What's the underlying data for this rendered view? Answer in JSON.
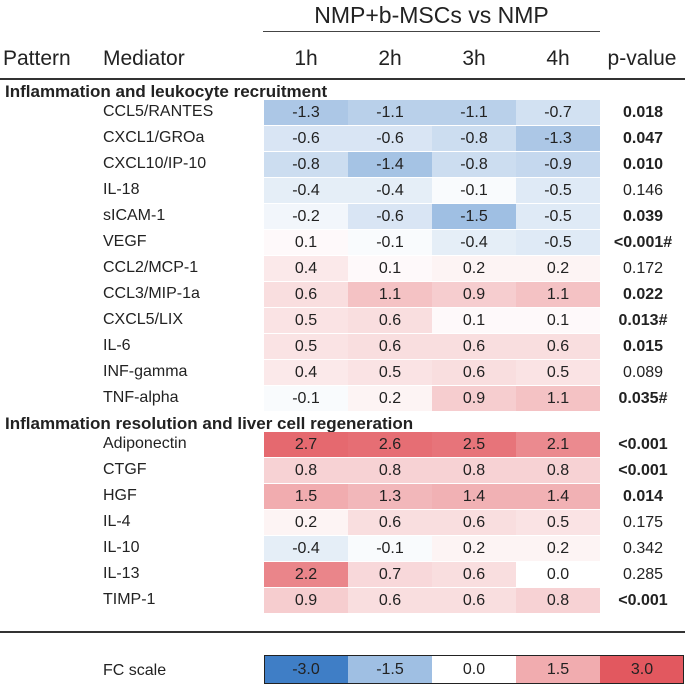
{
  "chart_data": {
    "type": "heatmap",
    "group_title": "NMP+b-MSCs vs NMP",
    "columns": {
      "pattern": "Pattern",
      "mediator": "Mediator",
      "times": [
        "1h",
        "2h",
        "3h",
        "4h"
      ],
      "pvalue": "p-value"
    },
    "sections": [
      {
        "name": "Inflammation and leukocyte recruitment",
        "rows": [
          {
            "mediator": "CCL5/RANTES",
            "values": [
              -1.3,
              -1.1,
              -1.1,
              -0.7
            ],
            "labels": [
              "-1.3",
              "-1.1",
              "-1.1",
              "-0.7"
            ],
            "pvalue": "0.018",
            "significant": true
          },
          {
            "mediator": "CXCL1/GROa",
            "values": [
              -0.6,
              -0.6,
              -0.8,
              -1.3
            ],
            "labels": [
              "-0.6",
              "-0.6",
              "-0.8",
              "-1.3"
            ],
            "pvalue": "0.047",
            "significant": true
          },
          {
            "mediator": "CXCL10/IP-10",
            "values": [
              -0.8,
              -1.4,
              -0.8,
              -0.9
            ],
            "labels": [
              "-0.8",
              "-1.4",
              "-0.8",
              "-0.9"
            ],
            "pvalue": "0.010",
            "significant": true
          },
          {
            "mediator": "IL-18",
            "values": [
              -0.4,
              -0.4,
              -0.1,
              -0.5
            ],
            "labels": [
              "-0.4",
              "-0.4",
              "-0.1",
              "-0.5"
            ],
            "pvalue": "0.146",
            "significant": false
          },
          {
            "mediator": "sICAM-1",
            "values": [
              -0.2,
              -0.6,
              -1.5,
              -0.5
            ],
            "labels": [
              "-0.2",
              "-0.6",
              "-1.5",
              "-0.5"
            ],
            "pvalue": "0.039",
            "significant": true
          },
          {
            "mediator": "VEGF",
            "values": [
              0.1,
              -0.1,
              -0.4,
              -0.5
            ],
            "labels": [
              "0.1",
              "-0.1",
              "-0.4",
              "-0.5"
            ],
            "pvalue": "<0.001#",
            "significant": true
          },
          {
            "mediator": "CCL2/MCP-1",
            "values": [
              0.4,
              0.1,
              0.2,
              0.2
            ],
            "labels": [
              "0.4",
              "0.1",
              "0.2",
              "0.2"
            ],
            "pvalue": "0.172",
            "significant": false
          },
          {
            "mediator": "CCL3/MIP-1a",
            "values": [
              0.6,
              1.1,
              0.9,
              1.1
            ],
            "labels": [
              "0.6",
              "1.1",
              "0.9",
              "1.1"
            ],
            "pvalue": "0.022",
            "significant": true
          },
          {
            "mediator": "CXCL5/LIX",
            "values": [
              0.5,
              0.6,
              0.1,
              0.1
            ],
            "labels": [
              "0.5",
              "0.6",
              "0.1",
              "0.1"
            ],
            "pvalue": "0.013#",
            "significant": true
          },
          {
            "mediator": "IL-6",
            "values": [
              0.5,
              0.6,
              0.6,
              0.6
            ],
            "labels": [
              "0.5",
              "0.6",
              "0.6",
              "0.6"
            ],
            "pvalue": "0.015",
            "significant": true
          },
          {
            "mediator": "INF-gamma",
            "values": [
              0.4,
              0.5,
              0.6,
              0.5
            ],
            "labels": [
              "0.4",
              "0.5",
              "0.6",
              "0.5"
            ],
            "pvalue": "0.089",
            "significant": false
          },
          {
            "mediator": "TNF-alpha",
            "values": [
              -0.1,
              0.2,
              0.9,
              1.1
            ],
            "labels": [
              "-0.1",
              "0.2",
              "0.9",
              "1.1"
            ],
            "pvalue": "0.035#",
            "significant": true
          }
        ]
      },
      {
        "name": "Inflammation resolution and liver cell regeneration",
        "rows": [
          {
            "mediator": "Adiponectin",
            "values": [
              2.7,
              2.6,
              2.5,
              2.1
            ],
            "labels": [
              "2.7",
              "2.6",
              "2.5",
              "2.1"
            ],
            "pvalue": "<0.001",
            "significant": true
          },
          {
            "mediator": "CTGF",
            "values": [
              0.8,
              0.8,
              0.8,
              0.8
            ],
            "labels": [
              "0.8",
              "0.8",
              "0.8",
              "0.8"
            ],
            "pvalue": "<0.001",
            "significant": true
          },
          {
            "mediator": "HGF",
            "values": [
              1.5,
              1.3,
              1.4,
              1.4
            ],
            "labels": [
              "1.5",
              "1.3",
              "1.4",
              "1.4"
            ],
            "pvalue": "0.014",
            "significant": true
          },
          {
            "mediator": "IL-4",
            "values": [
              0.2,
              0.6,
              0.6,
              0.5
            ],
            "labels": [
              "0.2",
              "0.6",
              "0.6",
              "0.5"
            ],
            "pvalue": "0.175",
            "significant": false
          },
          {
            "mediator": "IL-10",
            "values": [
              -0.4,
              -0.1,
              0.2,
              0.2
            ],
            "labels": [
              "-0.4",
              "-0.1",
              "0.2",
              "0.2"
            ],
            "pvalue": "0.342",
            "significant": false
          },
          {
            "mediator": "IL-13",
            "values": [
              2.2,
              0.7,
              0.6,
              0.0
            ],
            "labels": [
              "2.2",
              "0.7",
              "0.6",
              "0.0"
            ],
            "pvalue": "0.285",
            "significant": false
          },
          {
            "mediator": "TIMP-1",
            "values": [
              0.9,
              0.6,
              0.6,
              0.8
            ],
            "labels": [
              "0.9",
              "0.6",
              "0.6",
              "0.8"
            ],
            "pvalue": "<0.001",
            "significant": true
          }
        ]
      }
    ],
    "scale": {
      "label": "FC scale",
      "stops": [
        -3.0,
        -1.5,
        0.0,
        1.5,
        3.0
      ],
      "stop_labels": [
        "-3.0",
        "-1.5",
        "0.0",
        "1.5",
        "3.0"
      ],
      "colors": {
        "negative": "#3f7ec6",
        "zero": "#ffffff",
        "positive": "#e2585f"
      }
    }
  }
}
